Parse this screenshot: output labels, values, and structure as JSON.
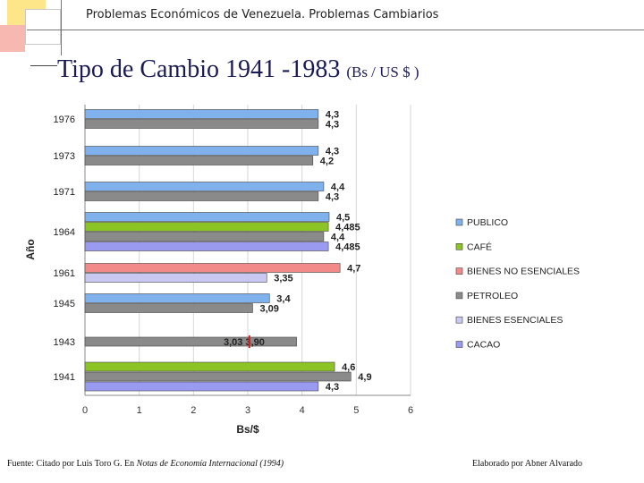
{
  "header": {
    "text": "Problemas Económicos de Venezuela.  Problemas Cambiarios"
  },
  "slide_title": {
    "main": "Tipo de Cambio 1941 -1983",
    "sub": "(Bs / US $ )"
  },
  "footer": {
    "source_prefix": "Fuente: Citado por Luis Toro G. En ",
    "source_italic": "Notas de Economía Internacional (1994)",
    "credit": "Elaborado por  Abner Alvarado"
  },
  "colors": {
    "publico": "#7fb2ec",
    "cafe": "#8dc425",
    "bienes_no_esenciales": "#f28a8a",
    "petroleo": "#8a8a8a",
    "bienes_esenciales": "#c8c8f2",
    "cacao": "#9a9af0"
  },
  "chart_data": {
    "type": "bar",
    "orientation": "horizontal",
    "title": "",
    "xlabel": "Bs/$",
    "ylabel": "Año",
    "xlim": [
      0,
      6
    ],
    "xticks": [
      "0",
      "1",
      "2",
      "3",
      "4",
      "5",
      "6"
    ],
    "grid": true,
    "legend_position": "right",
    "legend": [
      {
        "name": "PUBLICO",
        "key": "publico"
      },
      {
        "name": "CAFÉ",
        "key": "cafe"
      },
      {
        "name": "BIENES NO ESENCIALES",
        "key": "bienes_no_esenciales"
      },
      {
        "name": "PETROLEO",
        "key": "petroleo"
      },
      {
        "name": "BIENES ESENCIALES",
        "key": "bienes_esenciales"
      },
      {
        "name": "CACAO",
        "key": "cacao"
      }
    ],
    "categories": [
      {
        "year": "1976",
        "bars": [
          {
            "series": "publico",
            "value": 4.3,
            "label": "4,3"
          },
          {
            "series": "petroleo",
            "value": 4.3,
            "label": "4,3"
          }
        ]
      },
      {
        "year": "1973",
        "bars": [
          {
            "series": "publico",
            "value": 4.3,
            "label": "4,3"
          },
          {
            "series": "petroleo",
            "value": 4.2,
            "label": "4,2"
          }
        ]
      },
      {
        "year": "1971",
        "bars": [
          {
            "series": "publico",
            "value": 4.4,
            "label": "4,4"
          },
          {
            "series": "petroleo",
            "value": 4.3,
            "label": "4,3"
          }
        ]
      },
      {
        "year": "1964",
        "bars": [
          {
            "series": "publico",
            "value": 4.5,
            "label": "4,5"
          },
          {
            "series": "cafe",
            "value": 4.485,
            "label": "4,485"
          },
          {
            "series": "petroleo",
            "value": 4.4,
            "label": "4,4"
          },
          {
            "series": "cacao",
            "value": 4.485,
            "label": "4,485"
          }
        ]
      },
      {
        "year": "1961",
        "bars": [
          {
            "series": "bienes_no_esenciales",
            "value": 4.7,
            "label": "4,7"
          },
          {
            "series": "bienes_esenciales",
            "value": 3.35,
            "label": "3,35"
          }
        ]
      },
      {
        "year": "1945",
        "bars": [
          {
            "series": "publico",
            "value": 3.4,
            "label": "3,4"
          },
          {
            "series": "petroleo",
            "value": 3.09,
            "label": "3,09"
          }
        ]
      },
      {
        "year": "1943",
        "bars": [
          {
            "series": "petroleo",
            "value": 3.9,
            "label": "3,03  3,90"
          }
        ]
      },
      {
        "year": "1941",
        "bars": [
          {
            "series": "cafe",
            "value": 4.6,
            "label": "4,6"
          },
          {
            "series": "petroleo",
            "value": 4.9,
            "label": "4,9"
          },
          {
            "series": "cacao",
            "value": 4.3,
            "label": "4,3"
          }
        ]
      }
    ],
    "markers": [
      {
        "year": "1943",
        "value": 3.03
      }
    ]
  }
}
